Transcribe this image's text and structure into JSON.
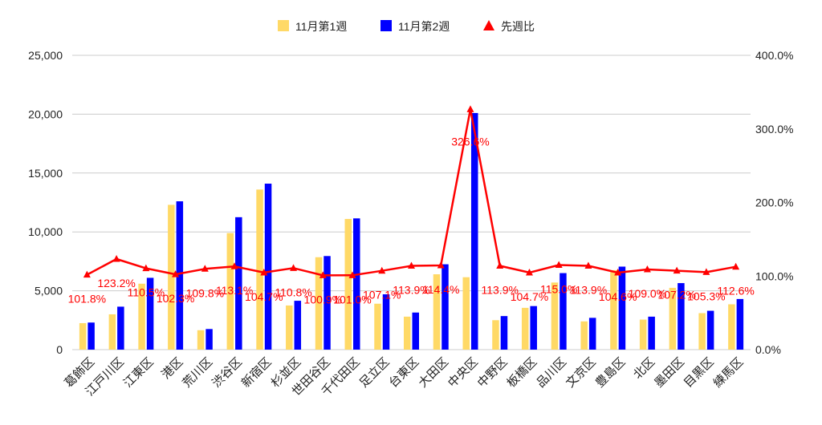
{
  "chart_data": {
    "type": "bar",
    "title": "",
    "xlabel": "",
    "ylabel_left": "",
    "ylabel_right": "",
    "categories": [
      "葛飾区",
      "江戸川区",
      "江東区",
      "港区",
      "荒川区",
      "渋谷区",
      "新宿区",
      "杉並区",
      "世田谷区",
      "千代田区",
      "足立区",
      "台東区",
      "大田区",
      "中央区",
      "中野区",
      "板橋区",
      "品川区",
      "文京区",
      "豊島区",
      "北区",
      "墨田区",
      "目黒区",
      "練馬区"
    ],
    "series": [
      {
        "name": "11月第1週",
        "type": "bar",
        "axis": "left",
        "color": "#ffd966",
        "values": [
          2250,
          3000,
          5600,
          12300,
          1650,
          9900,
          13600,
          3750,
          7850,
          11100,
          3900,
          2800,
          6400,
          6150,
          2500,
          3550,
          5700,
          2400,
          6750,
          2550,
          5250,
          3100,
          3850
        ]
      },
      {
        "name": "11月第2週",
        "type": "bar",
        "axis": "left",
        "color": "#0000ff",
        "values": [
          2300,
          3650,
          6100,
          12600,
          1750,
          11250,
          14100,
          4150,
          7950,
          11150,
          4700,
          3150,
          7250,
          20100,
          2850,
          3700,
          6500,
          2700,
          7050,
          2800,
          5650,
          3300,
          4300
        ]
      },
      {
        "name": "先週比",
        "type": "line",
        "axis": "right",
        "color": "#ff0000",
        "values": [
          101.8,
          123.2,
          110.5,
          102.3,
          109.8,
          113.1,
          104.7,
          110.8,
          100.9,
          101.0,
          107.1,
          113.9,
          114.4,
          326.6,
          113.9,
          104.7,
          115.0,
          113.9,
          104.6,
          109.0,
          107.2,
          105.3,
          112.6
        ],
        "labels": [
          "101.8%",
          "123.2%",
          "110.5%",
          "102.3%",
          "109.8%",
          "113.1%",
          "104.7%",
          "110.8%",
          "100.9%",
          "101.0%",
          "107.1%",
          "113.9%",
          "114.4%",
          "326.6%",
          "113.9%",
          "104.7%",
          "115.0%",
          "113.9%",
          "104.6%",
          "109.0%",
          "107.2%",
          "105.3%",
          "112.6%"
        ]
      }
    ],
    "left_axis": {
      "min": 0,
      "max": 25000,
      "ticks": [
        "0",
        "5,000",
        "10,000",
        "15,000",
        "20,000",
        "25,000"
      ],
      "tick_values": [
        0,
        5000,
        10000,
        15000,
        20000,
        25000
      ]
    },
    "right_axis": {
      "min": 0,
      "max": 400,
      "ticks": [
        "0.0%",
        "100.0%",
        "200.0%",
        "300.0%",
        "400.0%"
      ],
      "tick_values": [
        0,
        100,
        200,
        300,
        400
      ]
    },
    "grid": true,
    "legend_position": "top-center"
  }
}
